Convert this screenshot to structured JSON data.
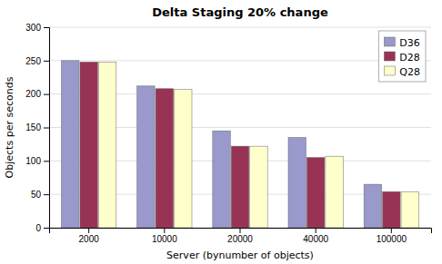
{
  "chart_data": {
    "type": "bar",
    "title": "Delta Staging 20% change",
    "xlabel": "Server (bynumber of objects)",
    "ylabel": "Objects per seconds",
    "categories": [
      "2000",
      "10000",
      "20000",
      "40000",
      "100000"
    ],
    "series": [
      {
        "name": "D36",
        "color": "#9999CC",
        "values": [
          250,
          212,
          145,
          135,
          65
        ]
      },
      {
        "name": "D28",
        "color": "#993355",
        "values": [
          248,
          208,
          122,
          105,
          54
        ]
      },
      {
        "name": "Q28",
        "color": "#FFFFCC",
        "values": [
          248,
          207,
          122,
          107,
          54
        ]
      }
    ],
    "ylim": [
      0,
      300
    ],
    "yticks": [
      0,
      50,
      100,
      150,
      200,
      250,
      300
    ],
    "grid": true,
    "legend": "upper right"
  }
}
